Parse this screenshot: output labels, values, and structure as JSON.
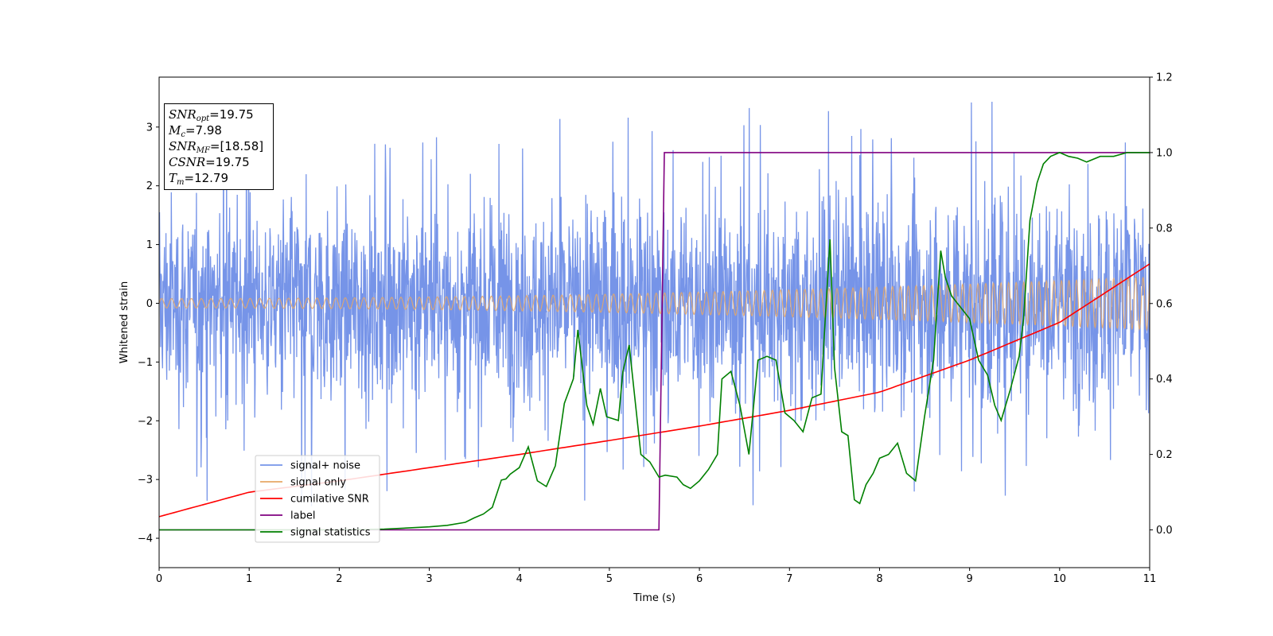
{
  "chart_data": {
    "type": "line",
    "xlabel": "Time (s)",
    "ylabel": "Whitened strain",
    "xlim": [
      0,
      11
    ],
    "ylim_left": [
      -4.5,
      3.85
    ],
    "ylim_right": [
      -0.1,
      1.2
    ],
    "xticks": [
      "0",
      "1",
      "2",
      "3",
      "4",
      "5",
      "6",
      "7",
      "8",
      "9",
      "10",
      "11"
    ],
    "yticks_left": [
      "3",
      "2",
      "1",
      "0",
      "−1",
      "−2",
      "−3",
      "−4"
    ],
    "yticks_right": [
      "1.2",
      "1.0",
      "0.8",
      "0.6",
      "0.4",
      "0.2",
      "0.0"
    ],
    "grid": false,
    "legend_placement": "lower-left",
    "series": [
      {
        "name": "signal+ noise",
        "color": "#7694e8",
        "axis": "left",
        "description_values": {
          "typical_amplitude": 1.5,
          "peak_max": 3.5,
          "peak_min": -4.15
        }
      },
      {
        "name": "signal only",
        "color": "#e7a866",
        "axis": "left",
        "amplitude_start": 0.08,
        "amplitude_end": 0.45
      },
      {
        "name": "cumilative SNR",
        "color": "#ff0000",
        "axis": "right",
        "x": [
          0,
          1,
          2,
          3,
          4,
          5,
          6,
          7,
          8,
          9,
          10,
          11
        ],
        "y": [
          0.035,
          0.1,
          0.13,
          0.165,
          0.2,
          0.237,
          0.275,
          0.317,
          0.365,
          0.45,
          0.55,
          0.705
        ]
      },
      {
        "name": "label",
        "color": "#800080",
        "axis": "right",
        "x": [
          0,
          5.55,
          5.61,
          11
        ],
        "y": [
          0,
          0,
          1,
          1
        ]
      },
      {
        "name": "signal statistics",
        "color": "#008000",
        "axis": "right",
        "x": [
          0,
          1,
          2,
          2.5,
          3,
          3.2,
          3.4,
          3.5,
          3.6,
          3.7,
          3.8,
          3.85,
          3.9,
          4.0,
          4.1,
          4.2,
          4.3,
          4.4,
          4.5,
          4.6,
          4.65,
          4.75,
          4.82,
          4.9,
          4.97,
          5.1,
          5.15,
          5.22,
          5.35,
          5.45,
          5.55,
          5.62,
          5.75,
          5.82,
          5.9,
          6.0,
          6.1,
          6.2,
          6.25,
          6.35,
          6.45,
          6.55,
          6.65,
          6.75,
          6.85,
          6.95,
          7.05,
          7.15,
          7.25,
          7.35,
          7.4,
          7.45,
          7.5,
          7.58,
          7.65,
          7.72,
          7.78,
          7.85,
          7.93,
          8.0,
          8.1,
          8.2,
          8.3,
          8.4,
          8.5,
          8.6,
          8.68,
          8.73,
          8.8,
          8.9,
          9.0,
          9.1,
          9.2,
          9.28,
          9.35,
          9.45,
          9.55,
          9.6,
          9.67,
          9.75,
          9.82,
          9.9,
          10.0,
          10.1,
          10.2,
          10.3,
          10.45,
          10.6,
          10.75,
          11.0
        ],
        "y": [
          0.0,
          0.0,
          0.0,
          0.002,
          0.008,
          0.012,
          0.02,
          0.032,
          0.042,
          0.06,
          0.132,
          0.135,
          0.148,
          0.165,
          0.22,
          0.13,
          0.115,
          0.17,
          0.335,
          0.4,
          0.53,
          0.33,
          0.28,
          0.375,
          0.3,
          0.29,
          0.42,
          0.49,
          0.2,
          0.18,
          0.14,
          0.145,
          0.14,
          0.12,
          0.11,
          0.13,
          0.16,
          0.2,
          0.4,
          0.42,
          0.33,
          0.2,
          0.45,
          0.46,
          0.45,
          0.31,
          0.29,
          0.26,
          0.35,
          0.36,
          0.57,
          0.77,
          0.43,
          0.26,
          0.25,
          0.08,
          0.07,
          0.12,
          0.15,
          0.19,
          0.2,
          0.23,
          0.15,
          0.13,
          0.3,
          0.45,
          0.74,
          0.67,
          0.62,
          0.59,
          0.56,
          0.45,
          0.41,
          0.33,
          0.29,
          0.37,
          0.46,
          0.56,
          0.82,
          0.92,
          0.97,
          0.99,
          1.0,
          0.99,
          0.985,
          0.975,
          0.99,
          0.99,
          1.0,
          1.0
        ]
      }
    ]
  },
  "info_box": {
    "snr_opt_label": "SNR",
    "snr_opt_sub": "opt",
    "snr_opt_value": "=19.75",
    "mc_label": "M",
    "mc_sub": "c",
    "mc_value": "=7.98",
    "snr_mf_label": "SNR",
    "snr_mf_sub": "MF",
    "snr_mf_value": "=[18.58]",
    "csnr_label": "CSNR",
    "csnr_value": "=19.75",
    "tm_label": "T",
    "tm_sub": "m",
    "tm_value": "=12.79"
  }
}
